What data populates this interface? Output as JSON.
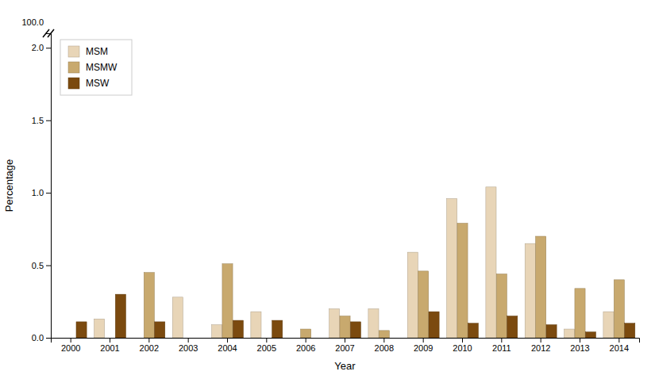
{
  "chart_data": {
    "type": "bar",
    "categories": [
      "2000",
      "2001",
      "2002",
      "2003",
      "2004",
      "2005",
      "2006",
      "2007",
      "2008",
      "2009",
      "2010",
      "2011",
      "2012",
      "2013",
      "2014"
    ],
    "series": [
      {
        "name": "MSM",
        "color": "#e8d5b7",
        "values": [
          0.0,
          0.13,
          0.0,
          0.28,
          0.09,
          0.18,
          0.0,
          0.2,
          0.2,
          0.59,
          0.96,
          1.04,
          0.65,
          0.06,
          0.18
        ]
      },
      {
        "name": "MSMW",
        "color": "#c8a96e",
        "values": [
          0.0,
          0.0,
          0.45,
          0.0,
          0.51,
          0.0,
          0.06,
          0.15,
          0.05,
          0.46,
          0.79,
          0.44,
          0.7,
          0.34,
          0.4
        ]
      },
      {
        "name": "MSW",
        "color": "#7b4a0f",
        "values": [
          0.11,
          0.3,
          0.11,
          0.0,
          0.12,
          0.12,
          0.0,
          0.11,
          0.0,
          0.18,
          0.1,
          0.15,
          0.09,
          0.04,
          0.1
        ]
      }
    ],
    "xlabel": "Year",
    "ylabel": "Percentage",
    "ylim": [
      0,
      2.1
    ],
    "yticks": [
      {
        "value": 0,
        "label": "0.0"
      },
      0.5,
      {
        "value": 1.0,
        "label": "1.0"
      },
      1.5,
      {
        "value": 2.0,
        "label": "2.0"
      }
    ],
    "annotations": [
      "100.0"
    ],
    "legend": "upper left",
    "grid": false
  }
}
